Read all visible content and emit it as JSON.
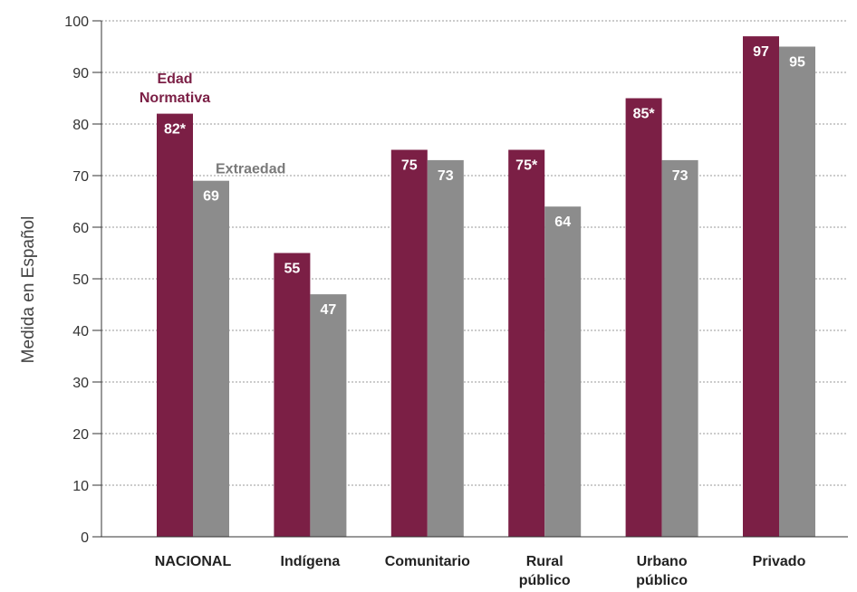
{
  "chart_data": {
    "type": "bar",
    "ylabel": "Medida en Español",
    "xlabel": "",
    "ylim": [
      0,
      100
    ],
    "yticks": [
      0,
      10,
      20,
      30,
      40,
      50,
      60,
      70,
      80,
      90,
      100
    ],
    "grid": true,
    "categories": [
      "NACIONAL",
      "Indígena",
      "Comunitario",
      "Rural público",
      "Urbano público",
      "Privado"
    ],
    "category_lines": [
      [
        "NACIONAL"
      ],
      [
        "Indígena"
      ],
      [
        "Comunitario"
      ],
      [
        "Rural",
        "público"
      ],
      [
        "Urbano",
        "público"
      ],
      [
        "Privado"
      ]
    ],
    "series": [
      {
        "name": "Edad Normativa",
        "name_lines": [
          "Edad",
          "Normativa"
        ],
        "color": "#7b1f45",
        "values": [
          82,
          55,
          75,
          75,
          85,
          97
        ],
        "labels": [
          "82*",
          "55",
          "75",
          "75*",
          "85*",
          "97"
        ]
      },
      {
        "name": "Extraedad",
        "name_lines": [
          "Extraedad"
        ],
        "color": "#8c8c8c",
        "values": [
          69,
          47,
          73,
          64,
          73,
          95
        ],
        "labels": [
          "69",
          "47",
          "73",
          "64",
          "73",
          "95"
        ]
      }
    ]
  }
}
